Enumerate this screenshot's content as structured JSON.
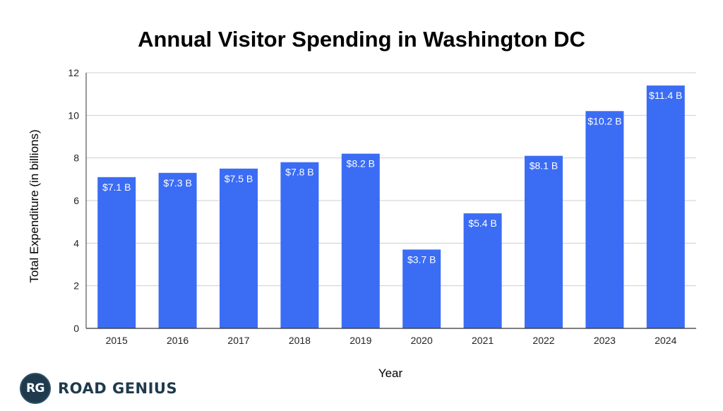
{
  "chart_data": {
    "type": "bar",
    "title": "Annual Visitor Spending in Washington DC",
    "xlabel": "Year",
    "ylabel": "Total Expenditure (in billions)",
    "categories": [
      "2015",
      "2016",
      "2017",
      "2018",
      "2019",
      "2020",
      "2021",
      "2022",
      "2023",
      "2024"
    ],
    "values": [
      7.1,
      7.3,
      7.5,
      7.8,
      8.2,
      3.7,
      5.4,
      8.1,
      10.2,
      11.4
    ],
    "data_labels": [
      "$7.1 B",
      "$7.3 B",
      "$7.5 B",
      "$7.8 B",
      "$8.2 B",
      "$3.7 B",
      "$5.4 B",
      "$8.1 B",
      "$10.2 B",
      "$11.4 B"
    ],
    "ylim": [
      0,
      12
    ],
    "yticks": [
      0,
      2,
      4,
      6,
      8,
      10,
      12
    ],
    "grid": true,
    "legend": "none",
    "bar_color": "#3b6cf4",
    "grid_color": "#cfcfcf"
  },
  "logo": {
    "mark": "RG",
    "text": "ROAD GENIUS",
    "color": "#1f3a4d"
  }
}
